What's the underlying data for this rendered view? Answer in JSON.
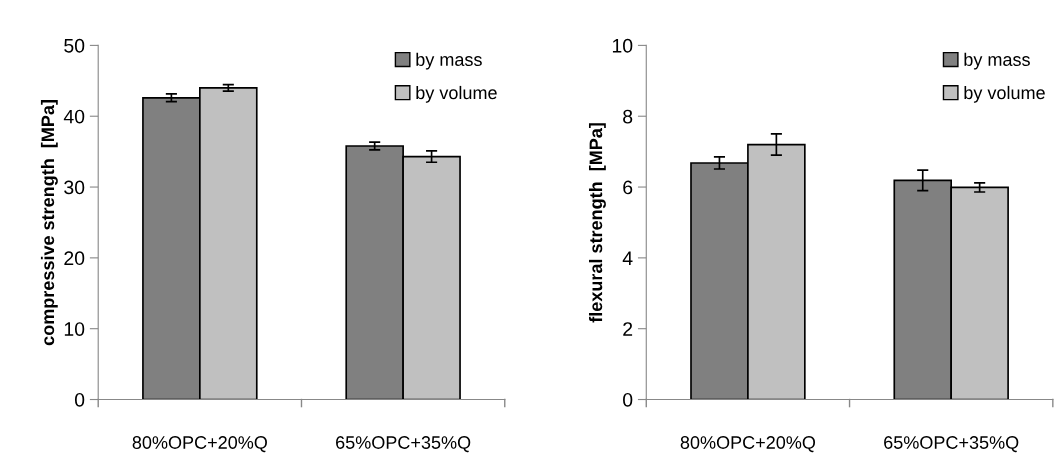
{
  "chart_data": [
    {
      "type": "bar",
      "ylabel": "compressive strength  [MPa]",
      "categories": [
        "80%OPC+20%Q",
        "65%OPC+35%Q"
      ],
      "series": [
        {
          "name": "by mass",
          "color": "#808080",
          "values": [
            42.6,
            35.8
          ],
          "errors": [
            0.55,
            0.55
          ]
        },
        {
          "name": "by volume",
          "color": "#c0c0c0",
          "values": [
            44.0,
            34.3
          ],
          "errors": [
            0.45,
            0.8
          ]
        }
      ],
      "ylim": [
        0,
        50
      ],
      "yticks": [
        0,
        10,
        20,
        30,
        40,
        50
      ],
      "grid": false,
      "legend": "top right"
    },
    {
      "type": "bar",
      "ylabel": "flexural strength  [MPa]",
      "categories": [
        "80%OPC+20%Q",
        "65%OPC+35%Q"
      ],
      "series": [
        {
          "name": "by mass",
          "color": "#808080",
          "values": [
            6.68,
            6.19
          ],
          "errors": [
            0.17,
            0.29
          ]
        },
        {
          "name": "by volume",
          "color": "#c0c0c0",
          "values": [
            7.2,
            5.99
          ],
          "errors": [
            0.3,
            0.13
          ]
        }
      ],
      "ylim": [
        0,
        10
      ],
      "yticks": [
        0,
        2,
        4,
        6,
        8,
        10
      ],
      "grid": false,
      "legend": "top right"
    }
  ]
}
